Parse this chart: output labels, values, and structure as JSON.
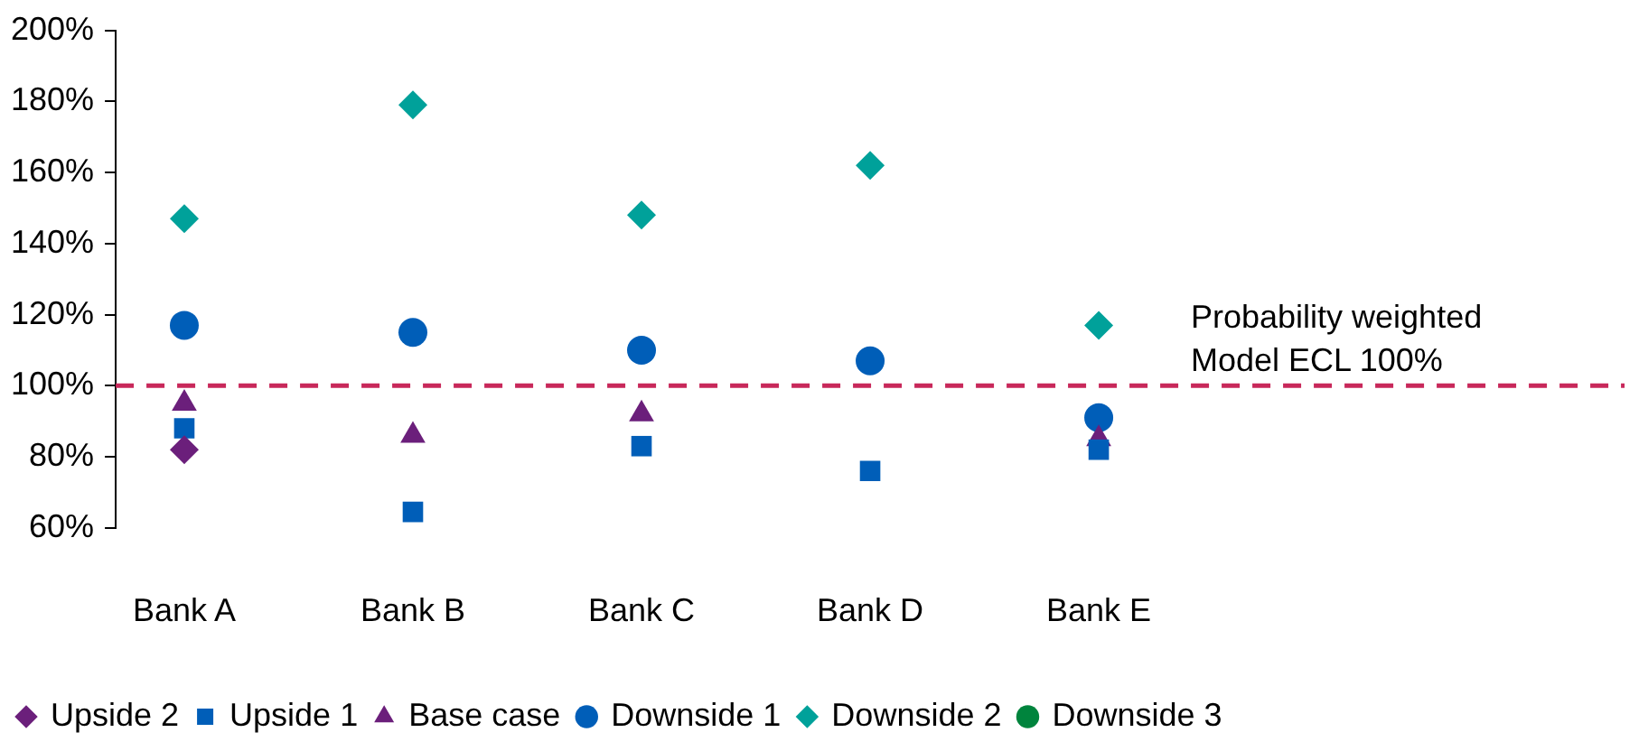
{
  "chart_data": {
    "type": "scatter",
    "categories": [
      "Bank A",
      "Bank B",
      "Bank C",
      "Bank D",
      "Bank E"
    ],
    "series": [
      {
        "name": "Upside 2",
        "color": "#6b1f7b",
        "marker": "diamond",
        "values": [
          82,
          null,
          null,
          null,
          null
        ]
      },
      {
        "name": "Upside 1",
        "color": "#005eb8",
        "marker": "square",
        "values": [
          88,
          64.5,
          83,
          76,
          82
        ]
      },
      {
        "name": "Base case",
        "color": "#6b1f7b",
        "marker": "triangle",
        "values": [
          95,
          86,
          92,
          null,
          85
        ]
      },
      {
        "name": "Downside 1",
        "color": "#005eb8",
        "marker": "circle",
        "values": [
          117,
          115,
          110,
          107,
          91
        ]
      },
      {
        "name": "Downside 2",
        "color": "#00a19a",
        "marker": "diamond",
        "values": [
          147,
          179,
          148,
          162,
          117
        ]
      },
      {
        "name": "Downside 3",
        "color": "#00843d",
        "marker": "circle",
        "values": [
          null,
          null,
          null,
          null,
          null
        ]
      }
    ],
    "ylim": [
      60,
      200
    ],
    "yticks": [
      {
        "value": 60,
        "label": "60%"
      },
      {
        "value": 80,
        "label": "80%"
      },
      {
        "value": 100,
        "label": "100%"
      },
      {
        "value": 120,
        "label": "120%"
      },
      {
        "value": 140,
        "label": "140%"
      },
      {
        "value": 160,
        "label": "160%"
      },
      {
        "value": 180,
        "label": "180%"
      },
      {
        "value": 200,
        "label": "200%"
      }
    ],
    "ref_lines": [
      {
        "axis": "y",
        "value": 100,
        "label": "Probability weighted Model ECL 100%",
        "color": "#c8285a",
        "line_style": "dashed"
      }
    ],
    "legend": "bottom",
    "grid": false
  }
}
